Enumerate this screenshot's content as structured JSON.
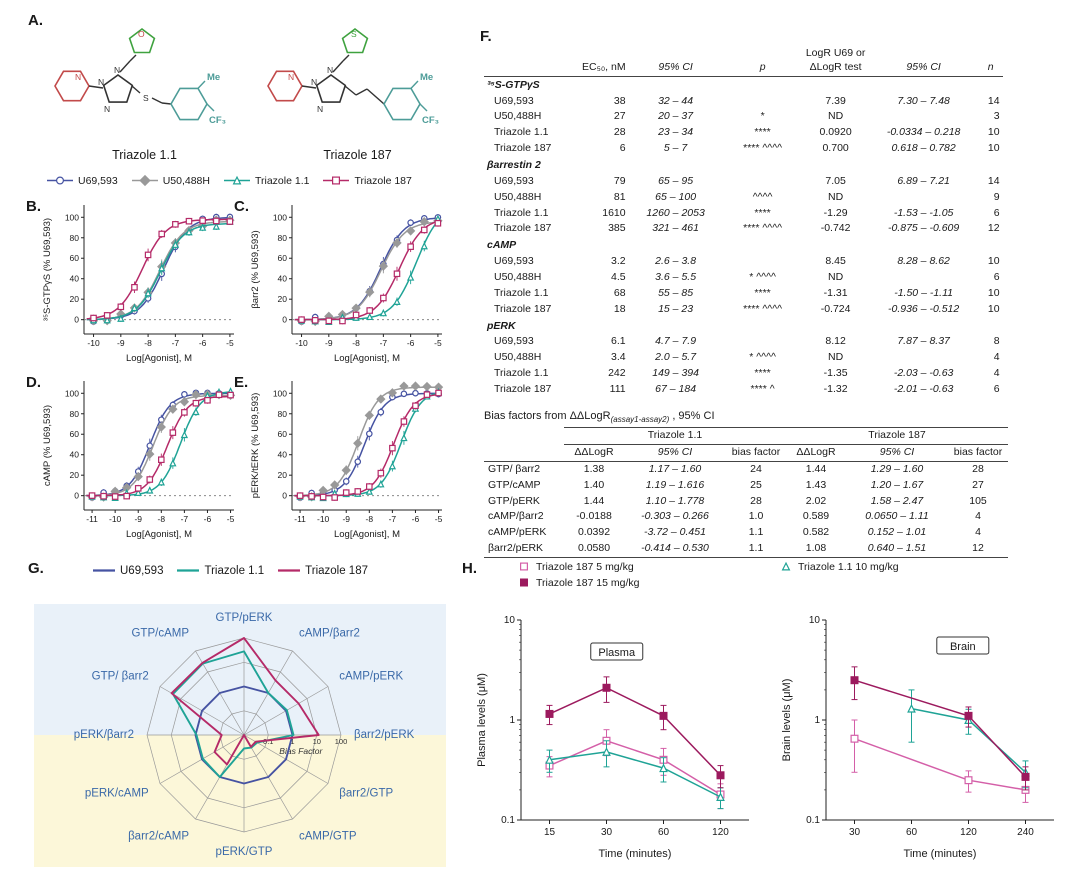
{
  "panels": {
    "A": "A.",
    "B": "B.",
    "C": "C.",
    "D": "D.",
    "E": "E.",
    "F": "F.",
    "G": "G.",
    "H": "H."
  },
  "panelA": {
    "compound1": "Triazole 1.1",
    "compound2": "Triazole 187",
    "substituents": {
      "me": "Me",
      "cf3": "CF₃"
    },
    "atoms": {
      "N": "N",
      "O": "O",
      "S": "S"
    }
  },
  "legendBE": [
    {
      "name": "U69,593",
      "color": "#4653a2",
      "marker": "circle",
      "filled": false
    },
    {
      "name": "U50,488H",
      "color": "#999999",
      "marker": "diamond",
      "filled": true
    },
    {
      "name": "Triazole 1.1",
      "color": "#1fa396",
      "marker": "triangle",
      "filled": false
    },
    {
      "name": "Triazole 187",
      "color": "#b52a68",
      "marker": "square",
      "filled": false
    }
  ],
  "legendG": [
    {
      "name": "U69,593",
      "color": "#4653a2"
    },
    {
      "name": "Triazole 1.1",
      "color": "#1fa396"
    },
    {
      "name": "Triazole 187",
      "color": "#b52a68"
    }
  ],
  "legendH": [
    {
      "name": "Triazole 187 5 mg/kg",
      "color": "#d45fa8",
      "marker": "square",
      "filled": false
    },
    {
      "name": "Triazole 1.1 10 mg/kg",
      "color": "#1fa396",
      "marker": "triangle",
      "filled": false
    },
    {
      "name": "Triazole 187 15 mg/kg",
      "color": "#9c1a5e",
      "marker": "square",
      "filled": true
    }
  ],
  "tableF": {
    "headers": [
      "EC₅₀, nM",
      "95% CI",
      "p",
      "LogR U69 or\nΔLogR test",
      "95% CI",
      "n"
    ],
    "sections": [
      {
        "name": "³⁵S-GTPγS",
        "rows": [
          [
            "U69,593",
            "38",
            "32 – 44",
            "",
            "7.39",
            "7.30 – 7.48",
            "14"
          ],
          [
            "U50,488H",
            "27",
            "20 – 37",
            "*",
            "ND",
            "",
            "3"
          ],
          [
            "Triazole 1.1",
            "28",
            "23 – 34",
            "****",
            "0.0920",
            "-0.0334 – 0.218",
            "10"
          ],
          [
            "Triazole 187",
            "6",
            "5 – 7",
            "**** ^^^^",
            "0.700",
            "0.618 – 0.782",
            "10"
          ]
        ]
      },
      {
        "name": "βarrestin 2",
        "rows": [
          [
            "U69,593",
            "79",
            "65 – 95",
            "",
            "7.05",
            "6.89 – 7.21",
            "14"
          ],
          [
            "U50,488H",
            "81",
            "65 – 100",
            "^^^^",
            "ND",
            "",
            "9"
          ],
          [
            "Triazole 1.1",
            "1610",
            "1260 – 2053",
            "****",
            "-1.29",
            "-1.53 – -1.05",
            "6"
          ],
          [
            "Triazole 187",
            "385",
            "321 – 461",
            "**** ^^^^",
            "-0.742",
            "-0.875 – -0.609",
            "12"
          ]
        ]
      },
      {
        "name": "cAMP",
        "rows": [
          [
            "U69,593",
            "3.2",
            "2.6 – 3.8",
            "",
            "8.45",
            "8.28 – 8.62",
            "10"
          ],
          [
            "U50,488H",
            "4.5",
            "3.6 – 5.5",
            "* ^^^^",
            "ND",
            "",
            "6"
          ],
          [
            "Triazole 1.1",
            "68",
            "55 – 85",
            "****",
            "-1.31",
            "-1.50 – -1.11",
            "10"
          ],
          [
            "Triazole 187",
            "18",
            "15 – 23",
            "**** ^^^^",
            "-0.724",
            "-0.936 – -0.512",
            "10"
          ]
        ]
      },
      {
        "name": "pERK",
        "rows": [
          [
            "U69,593",
            "6.1",
            "4.7 – 7.9",
            "",
            "8.12",
            "7.87 – 8.37",
            "8"
          ],
          [
            "U50,488H",
            "3.4",
            "2.0 – 5.7",
            "* ^^^^",
            "ND",
            "",
            "4"
          ],
          [
            "Triazole 1.1",
            "242",
            "149 – 394",
            "****",
            "-1.35",
            "-2.03 – -0.63",
            "4"
          ],
          [
            "Triazole 187",
            "111",
            "67 – 184",
            "**** ^",
            "-1.32",
            "-2.01 – -0.63",
            "6"
          ]
        ]
      }
    ]
  },
  "tableBias": {
    "title_prefix": "Bias factors from ΔΔLogR",
    "title_sub": "(assay1-assay2)",
    "title_suffix": " , 95% CI",
    "group_headers": [
      "Triazole 1.1",
      "Triazole 187"
    ],
    "col_headers": [
      "ΔΔLogR",
      "95% CI",
      "bias factor",
      "ΔΔLogR",
      "95% CI",
      "bias factor"
    ],
    "rows": [
      [
        "GTP/ βarr2",
        "1.38",
        "1.17 – 1.60",
        "24",
        "1.44",
        "1.29 – 1.60",
        "28"
      ],
      [
        "GTP/cAMP",
        "1.40",
        "1.19 – 1.616",
        "25",
        "1.43",
        "1.20 – 1.67",
        "27"
      ],
      [
        "GTP/pERK",
        "1.44",
        "1.10 – 1.778",
        "28",
        "2.02",
        "1.58 – 2.47",
        "105"
      ],
      [
        "cAMP/βarr2",
        "-0.0188",
        "-0.303 – 0.266",
        "1.0",
        "0.589",
        "0.0650 – 1.11",
        "4"
      ],
      [
        "cAMP/pERK",
        "0.0392",
        "-3.72 – 0.451",
        "1.1",
        "0.582",
        "0.152 – 1.01",
        "4"
      ],
      [
        "βarr2/pERK",
        "0.0580",
        "-0.414 – 0.530",
        "1.1",
        "1.08",
        "0.640 – 1.51",
        "12"
      ]
    ]
  },
  "chart_data": [
    {
      "id": "B",
      "type": "line",
      "subtype": "dose-response",
      "xlabel": "Log[Agonist], M",
      "ylabel": "³⁵S-GTPγS (% U69,593)",
      "xticks": [
        -10,
        -9,
        -8,
        -7,
        -6,
        -5
      ],
      "yticks": [
        0,
        20,
        40,
        60,
        80,
        100
      ],
      "series": [
        {
          "name": "U69,593",
          "ec50_nM": 38,
          "logEC50": -7.42,
          "top": 100,
          "color": "#4653a2",
          "marker": "circle",
          "filled": false
        },
        {
          "name": "U50,488H",
          "ec50_nM": 27,
          "logEC50": -7.57,
          "top": 96,
          "color": "#999999",
          "marker": "diamond",
          "filled": true
        },
        {
          "name": "Triazole 1.1",
          "ec50_nM": 28,
          "logEC50": -7.55,
          "top": 94,
          "color": "#1fa396",
          "marker": "triangle",
          "filled": false
        },
        {
          "name": "Triazole 187",
          "ec50_nM": 6,
          "logEC50": -8.22,
          "top": 98,
          "color": "#b52a68",
          "marker": "square",
          "filled": false
        }
      ]
    },
    {
      "id": "C",
      "type": "line",
      "subtype": "dose-response",
      "xlabel": "Log[Agonist], M",
      "ylabel": "βarr2 (% U69,593)",
      "xticks": [
        -10,
        -9,
        -8,
        -7,
        -6,
        -5
      ],
      "yticks": [
        0,
        20,
        40,
        60,
        80,
        100
      ],
      "series": [
        {
          "name": "U69,593",
          "ec50_nM": 79,
          "logEC50": -7.1,
          "top": 100,
          "color": "#4653a2",
          "marker": "circle",
          "filled": false
        },
        {
          "name": "U50,488H",
          "ec50_nM": 81,
          "logEC50": -7.09,
          "top": 96,
          "color": "#999999",
          "marker": "diamond",
          "filled": true
        },
        {
          "name": "Triazole 1.1",
          "ec50_nM": 1610,
          "logEC50": -5.79,
          "top": 112,
          "color": "#1fa396",
          "marker": "triangle",
          "filled": false
        },
        {
          "name": "Triazole 187",
          "ec50_nM": 385,
          "logEC50": -6.41,
          "top": 100,
          "color": "#b52a68",
          "marker": "square",
          "filled": false
        }
      ]
    },
    {
      "id": "D",
      "type": "line",
      "subtype": "dose-response",
      "xlabel": "Log[Agonist], M",
      "ylabel": "cAMP (% U69,593)",
      "xticks": [
        -11,
        -10,
        -9,
        -8,
        -7,
        -6,
        -5
      ],
      "yticks": [
        0,
        20,
        40,
        60,
        80,
        100
      ],
      "series": [
        {
          "name": "U69,593",
          "ec50_nM": 3.2,
          "logEC50": -8.49,
          "top": 100,
          "color": "#4653a2",
          "marker": "circle",
          "filled": false
        },
        {
          "name": "U50,488H",
          "ec50_nM": 4.5,
          "logEC50": -8.35,
          "top": 98,
          "color": "#999999",
          "marker": "diamond",
          "filled": true
        },
        {
          "name": "Triazole 1.1",
          "ec50_nM": 68,
          "logEC50": -7.17,
          "top": 102,
          "color": "#1fa396",
          "marker": "triangle",
          "filled": false
        },
        {
          "name": "Triazole 187",
          "ec50_nM": 18,
          "logEC50": -7.74,
          "top": 97,
          "color": "#b52a68",
          "marker": "square",
          "filled": false
        }
      ]
    },
    {
      "id": "E",
      "type": "line",
      "subtype": "dose-response",
      "xlabel": "Log[Agonist], M",
      "ylabel": "pERK/tERK (% U69,593)",
      "xticks": [
        -11,
        -10,
        -9,
        -8,
        -7,
        -6,
        -5
      ],
      "yticks": [
        0,
        20,
        40,
        60,
        80,
        100
      ],
      "series": [
        {
          "name": "U69,593",
          "ec50_nM": 6.1,
          "logEC50": -8.21,
          "top": 100,
          "color": "#4653a2",
          "marker": "circle",
          "filled": false
        },
        {
          "name": "U50,488H",
          "ec50_nM": 3.4,
          "logEC50": -8.47,
          "top": 106,
          "color": "#999999",
          "marker": "diamond",
          "filled": true
        },
        {
          "name": "Triazole 1.1",
          "ec50_nM": 242,
          "logEC50": -6.62,
          "top": 103,
          "color": "#1fa396",
          "marker": "triangle",
          "filled": false
        },
        {
          "name": "Triazole 187",
          "ec50_nM": 111,
          "logEC50": -6.95,
          "top": 100,
          "color": "#b52a68",
          "marker": "square",
          "filled": false
        }
      ]
    },
    {
      "id": "G",
      "type": "radar",
      "axes": [
        "GTP/pERK",
        "cAMP/βarr2",
        "cAMP/pERK",
        "βarr2/pERK",
        "βarr2/GTP",
        "cAMP/GTP",
        "pERK/GTP",
        "βarr2/cAMP",
        "pERK/cAMP",
        "pERK/βarr2",
        "GTP/ βarr2",
        "GTP/cAMP"
      ],
      "scale": {
        "min": 0.01,
        "max": 100,
        "rings": [
          0.1,
          1,
          10,
          100
        ],
        "ring_labels": [
          "0.1",
          "1",
          "10",
          "100"
        ],
        "label": "Bias Factor"
      },
      "bg_top": "#e9f1f9",
      "bg_bottom": "#fcf7d9",
      "label_color": "#3a69a8",
      "series": [
        {
          "name": "U69,593",
          "color": "#4653a2",
          "values": [
            1,
            1,
            1,
            1,
            1,
            1,
            1,
            1,
            1,
            1,
            1,
            1
          ]
        },
        {
          "name": "Triazole 1.1",
          "color": "#1fa396",
          "values": [
            28,
            1.0,
            1.1,
            1.1,
            0.042,
            0.04,
            0.036,
            1.0,
            0.91,
            0.91,
            24,
            25
          ]
        },
        {
          "name": "Triazole 187",
          "color": "#b52a68",
          "values": [
            105,
            4,
            4,
            12,
            0.036,
            0.037,
            0.0095,
            0.25,
            0.25,
            0.083,
            28,
            27
          ]
        }
      ]
    },
    {
      "id": "H_plasma",
      "type": "line",
      "subtype": "pk",
      "title": "Plasma",
      "title_pos": [
        0.42,
        0.16
      ],
      "xlabel": "Time (minutes)",
      "ylabel": "Plasma levels (μM)",
      "xticks": [
        15,
        30,
        60,
        120
      ],
      "ylim": [
        0.1,
        10
      ],
      "yscale": "log",
      "series": [
        {
          "name": "Triazole 187 5 mg/kg",
          "color": "#d45fa8",
          "marker": "square",
          "filled": false,
          "x": [
            15,
            30,
            60,
            120
          ],
          "values": [
            0.35,
            0.62,
            0.4,
            0.18
          ],
          "err": [
            0.08,
            0.18,
            0.12,
            0.05
          ]
        },
        {
          "name": "Triazole 1.1 10 mg/kg",
          "color": "#1fa396",
          "marker": "triangle",
          "filled": false,
          "x": [
            15,
            30,
            60,
            120
          ],
          "values": [
            0.4,
            0.48,
            0.33,
            0.17
          ],
          "err": [
            0.1,
            0.14,
            0.09,
            0.04
          ]
        },
        {
          "name": "Triazole 187 15 mg/kg",
          "color": "#9c1a5e",
          "marker": "square",
          "filled": true,
          "x": [
            15,
            30,
            60,
            120
          ],
          "values": [
            1.15,
            2.1,
            1.1,
            0.28
          ],
          "err": [
            0.25,
            0.6,
            0.3,
            0.07
          ]
        }
      ]
    },
    {
      "id": "H_brain",
      "type": "line",
      "subtype": "pk",
      "title": "Brain",
      "title_pos": [
        0.6,
        0.13
      ],
      "xlabel": "Time (minutes)",
      "ylabel": "Brain levels (μM)",
      "xticks": [
        30,
        60,
        120,
        240
      ],
      "ylim": [
        0.1,
        10
      ],
      "yscale": "log",
      "series": [
        {
          "name": "Triazole 187 5 mg/kg",
          "color": "#d45fa8",
          "marker": "square",
          "filled": false,
          "x": [
            30,
            120,
            240
          ],
          "values": [
            0.65,
            0.25,
            0.2
          ],
          "err": [
            0.35,
            0.06,
            0.05
          ]
        },
        {
          "name": "Triazole 1.1 10 mg/kg",
          "color": "#1fa396",
          "marker": "triangle",
          "filled": false,
          "x": [
            60,
            120,
            240
          ],
          "values": [
            1.3,
            1.0,
            0.3
          ],
          "err": [
            0.7,
            0.28,
            0.09
          ]
        },
        {
          "name": "Triazole 187 15 mg/kg",
          "color": "#9c1a5e",
          "marker": "square",
          "filled": true,
          "x": [
            30,
            120,
            240
          ],
          "values": [
            2.5,
            1.1,
            0.27
          ],
          "err": [
            0.9,
            0.25,
            0.07
          ]
        }
      ]
    }
  ]
}
